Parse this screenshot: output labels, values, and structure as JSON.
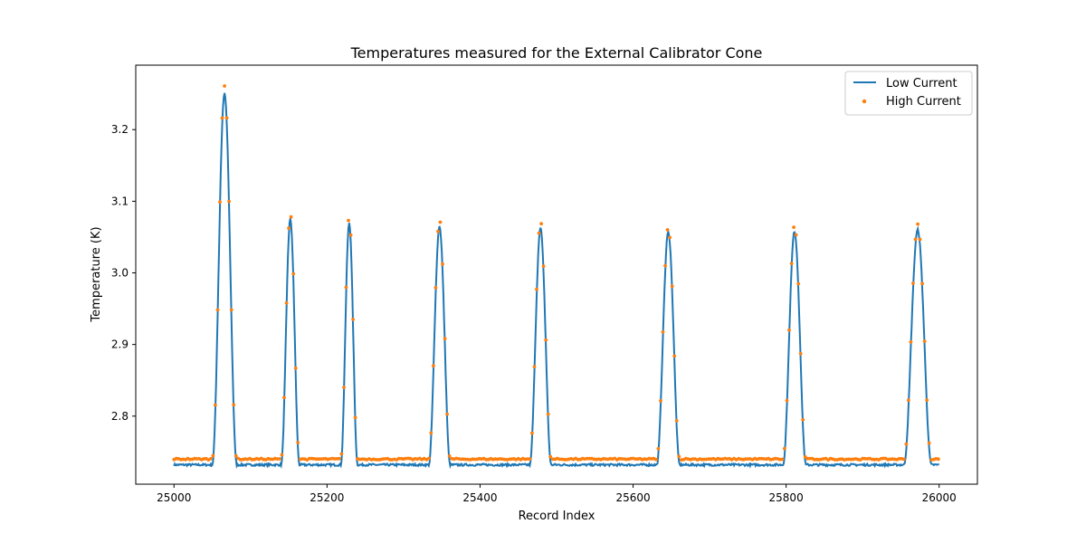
{
  "chart_data": {
    "type": "line",
    "title": "Temperatures measured for the External Calibrator Cone",
    "xlabel": "Record Index",
    "ylabel": "Temperature (K)",
    "xlim": [
      24950,
      26050
    ],
    "ylim": [
      2.705,
      3.29
    ],
    "xticks": [
      25000,
      25200,
      25400,
      25600,
      25800,
      26000
    ],
    "yticks": [
      2.8,
      2.9,
      3.0,
      3.1,
      3.2
    ],
    "ytick_labels": [
      "2.8",
      "2.9",
      "3.0",
      "3.1",
      "3.2"
    ],
    "grid": false,
    "legend_position": "top-right",
    "x_range": [
      25000,
      26000
    ],
    "peaks": [
      {
        "center": 25066,
        "half_width": 16,
        "low_peak": 3.25,
        "high_peak": 3.26
      },
      {
        "center": 25152,
        "half_width": 12,
        "low_peak": 3.075,
        "high_peak": 3.085
      },
      {
        "center": 25229,
        "half_width": 11,
        "low_peak": 3.07,
        "high_peak": 3.08
      },
      {
        "center": 25347,
        "half_width": 14,
        "low_peak": 3.065,
        "high_peak": 3.075
      },
      {
        "center": 25479,
        "half_width": 14,
        "low_peak": 3.062,
        "high_peak": 3.072
      },
      {
        "center": 25646,
        "half_width": 15,
        "low_peak": 3.057,
        "high_peak": 3.063
      },
      {
        "center": 25811,
        "half_width": 15,
        "low_peak": 3.058,
        "high_peak": 3.067
      },
      {
        "center": 25972,
        "half_width": 18,
        "low_peak": 3.06,
        "high_peak": 3.068
      }
    ],
    "series": [
      {
        "name": "Low Current",
        "style": "line",
        "color": "#1f77b4",
        "baseline": 2.732
      },
      {
        "name": "High Current",
        "style": "dots",
        "color": "#ff7f0e",
        "baseline": 2.74
      }
    ]
  }
}
